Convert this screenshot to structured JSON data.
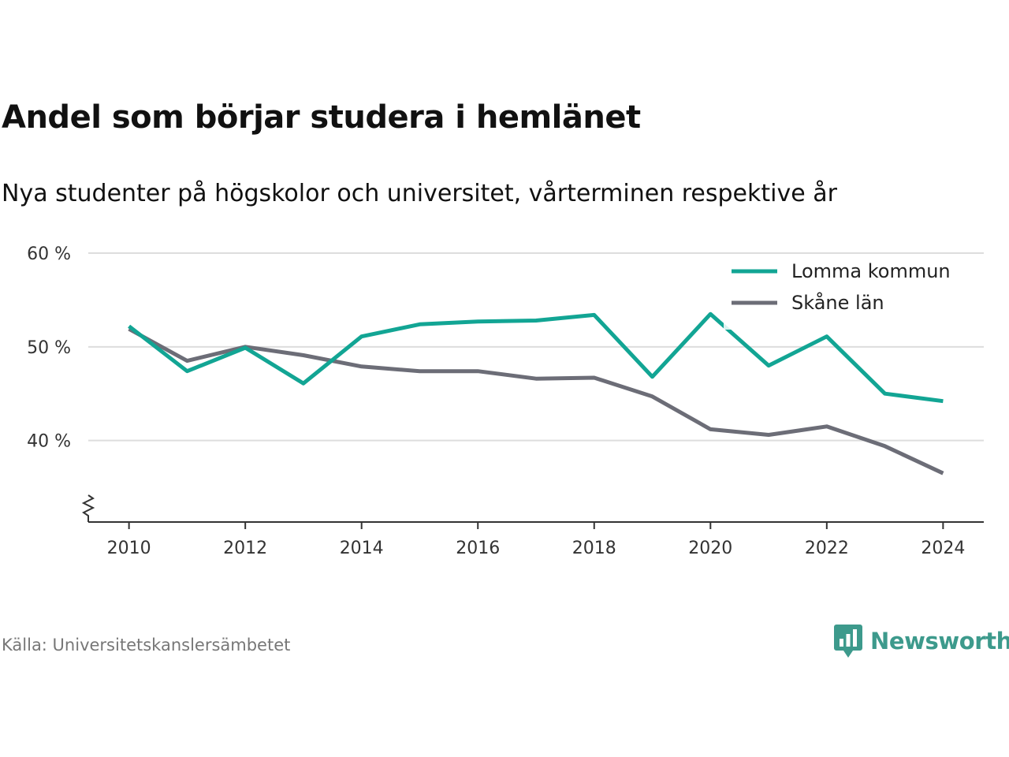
{
  "header": {
    "title": "Andel som börjar studera i hemlänet",
    "subtitle": "Nya studenter på högskolor och universitet, vårterminen respektive år"
  },
  "footer": {
    "source": "Källa: Universitetskanslersämbetet",
    "brand": "Newsworthy",
    "brand_icon": "newsworthy-logo-icon"
  },
  "colors": {
    "lomma": "#12a594",
    "skane": "#6c6d77",
    "brand": "#3d9a8c",
    "grid": "#dddddd",
    "axis": "#333333"
  },
  "chart_data": {
    "type": "line",
    "x": [
      2010,
      2011,
      2012,
      2013,
      2014,
      2015,
      2016,
      2017,
      2018,
      2019,
      2020,
      2021,
      2022,
      2023,
      2024
    ],
    "series": [
      {
        "name": "Lomma kommun",
        "values": [
          52.2,
          47.4,
          49.9,
          46.1,
          51.1,
          52.4,
          52.7,
          52.8,
          53.4,
          46.8,
          53.5,
          48.0,
          51.1,
          45.0,
          44.2
        ]
      },
      {
        "name": "Skåne län",
        "values": [
          51.9,
          48.5,
          50.0,
          49.1,
          47.9,
          47.4,
          47.4,
          46.6,
          46.7,
          44.7,
          41.2,
          40.6,
          41.5,
          39.4,
          36.5
        ]
      }
    ],
    "y_ticks": [
      40,
      50,
      60
    ],
    "y_tick_labels": [
      "40 %",
      "50 %",
      "60 %"
    ],
    "x_ticks": [
      2010,
      2012,
      2014,
      2016,
      2018,
      2020,
      2022,
      2024
    ],
    "x_tick_labels": [
      "2010",
      "2012",
      "2014",
      "2016",
      "2018",
      "2020",
      "2022",
      "2024"
    ],
    "ylim": [
      31.3,
      60
    ],
    "xlim": [
      2009.3,
      2024.7
    ],
    "y_axis_break": true,
    "grid": true,
    "legend_position": "top-right",
    "xlabel": "",
    "ylabel": ""
  }
}
